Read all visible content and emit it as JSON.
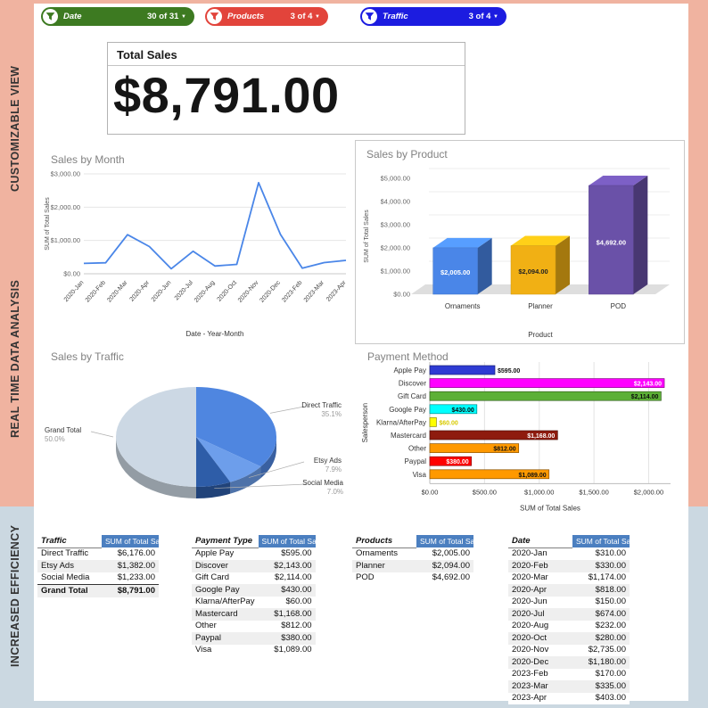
{
  "sidebar": {
    "labels": [
      "CUSTOMIZABLE VIEW",
      "REAL TIME DATA ANALYSIS",
      "INCREASED EFFICIENCY"
    ]
  },
  "filters": [
    {
      "label": "Date",
      "count": "30 of 31",
      "color": "#3d7a21"
    },
    {
      "label": "Products",
      "count": "3 of 4",
      "color": "#e2443b"
    },
    {
      "label": "Traffic",
      "count": "3 of 4",
      "color": "#1c1ce0"
    }
  ],
  "total_sales": {
    "title": "Total Sales",
    "value": "$8,791.00"
  },
  "chart_data": [
    {
      "type": "line",
      "title": "Sales by Month",
      "x": [
        "2020-Jan",
        "2020-Feb",
        "2020-Mar",
        "2020-Apr",
        "2020-Jun",
        "2020-Jul",
        "2020-Aug",
        "2020-Oct",
        "2020-Nov",
        "2020-Dec",
        "2023-Feb",
        "2023-Mar",
        "2023-Apr"
      ],
      "values": [
        310,
        330,
        1174,
        818,
        150,
        674,
        232,
        280,
        2735,
        1180,
        170,
        335,
        403
      ],
      "xlabel": "Date - Year-Month",
      "ylabel": "SUM of Total Sales",
      "ylim": [
        0,
        3000
      ],
      "yticks": [
        "$0.00",
        "$1,000.00",
        "$2,000.00",
        "$3,000.00"
      ],
      "line_color": "#4a86e8",
      "grid": true
    },
    {
      "type": "bar",
      "title": "Sales by Product",
      "categories": [
        "Ornaments",
        "Planner",
        "POD"
      ],
      "values": [
        2005,
        2094,
        4692
      ],
      "bar_labels": [
        "$2,005.00",
        "$2,094.00",
        "$4,692.00"
      ],
      "label_colors": [
        "#ffffff",
        "#222222",
        "#ffffff"
      ],
      "colors": [
        "#4a86e8",
        "#f1b014",
        "#6a51a8"
      ],
      "xlabel": "Product",
      "ylabel": "SUM of Total Sales",
      "ylim": [
        0,
        5000
      ],
      "yticks": [
        "$0.00",
        "$1,000.00",
        "$2,000.00",
        "$3,000.00",
        "$4,000.00",
        "$5,000.00"
      ],
      "style": "3d"
    },
    {
      "type": "pie",
      "title": "Sales by Traffic",
      "slices": [
        {
          "label": "Direct Traffic",
          "pct": 35.1,
          "pct_label": "35.1%",
          "color": "#4f86e0"
        },
        {
          "label": "Etsy Ads",
          "pct": 7.9,
          "pct_label": "7.9%",
          "color": "#6d9eeb"
        },
        {
          "label": "Social Media",
          "pct": 7.0,
          "pct_label": "7.0%",
          "color": "#2e5da8"
        },
        {
          "label": "Grand Total",
          "pct": 50.0,
          "pct_label": "50.0%",
          "color": "#ccd8e4"
        }
      ],
      "style": "3d"
    },
    {
      "type": "bar-horizontal",
      "title": "Payment Method",
      "categories": [
        "Apple Pay",
        "Discover",
        "Gift Card",
        "Google Pay",
        "Klarna/AfterPay",
        "Mastercard",
        "Other",
        "Paypal",
        "Visa"
      ],
      "values": [
        595,
        2143,
        2114,
        430,
        60,
        1168,
        812,
        380,
        1089
      ],
      "bar_labels": [
        "$595.00",
        "$2,143.00",
        "$2,114.00",
        "$430.00",
        "$60.00",
        "$1,168.00",
        "$812.00",
        "$380.00",
        "$1,089.00"
      ],
      "colors": [
        "#2e3bd3",
        "#ff00ff",
        "#5cb036",
        "#00ffff",
        "#ffff00",
        "#8e1b0e",
        "#ff9900",
        "#ff0000",
        "#ff9900"
      ],
      "label_colors": [
        "#111111",
        "#ffffff",
        "#0a0a0a",
        "#0a0a0a",
        "#d8ca00",
        "#ffffff",
        "#111111",
        "#ffffff",
        "#111111"
      ],
      "label_inside": [
        false,
        true,
        true,
        true,
        false,
        true,
        true,
        true,
        true
      ],
      "xlabel": "SUM of Total Sales",
      "ylabel": "Salesperson",
      "xlim": [
        0,
        2200
      ],
      "xtick_values": [
        0,
        500,
        1000,
        1500,
        2000
      ],
      "xticks": [
        "$0.00",
        "$500.00",
        "$1,000.00",
        "$1,500.00",
        "$2,000.00"
      ],
      "grid": true
    }
  ],
  "tables": [
    {
      "header": [
        "Traffic",
        "SUM of Total Sal"
      ],
      "rows": [
        [
          "Direct Traffic",
          "$6,176.00"
        ],
        [
          "Etsy Ads",
          "$1,382.00"
        ],
        [
          "Social Media",
          "$1,233.00"
        ]
      ],
      "total_row": [
        "Grand Total",
        "$8,791.00"
      ]
    },
    {
      "header": [
        "Payment Type",
        "SUM of Total Sa"
      ],
      "rows": [
        [
          "Apple Pay",
          "$595.00"
        ],
        [
          "Discover",
          "$2,143.00"
        ],
        [
          "Gift Card",
          "$2,114.00"
        ],
        [
          "Google Pay",
          "$430.00"
        ],
        [
          "Klarna/AfterPay",
          "$60.00"
        ],
        [
          "Mastercard",
          "$1,168.00"
        ],
        [
          "Other",
          "$812.00"
        ],
        [
          "Paypal",
          "$380.00"
        ],
        [
          "Visa",
          "$1,089.00"
        ]
      ]
    },
    {
      "header": [
        "Products",
        "SUM of Total Sa"
      ],
      "rows": [
        [
          "Ornaments",
          "$2,005.00"
        ],
        [
          "Planner",
          "$2,094.00"
        ],
        [
          "POD",
          "$4,692.00"
        ]
      ]
    },
    {
      "header": [
        "Date",
        "SUM of Total Sa"
      ],
      "rows": [
        [
          "2020-Jan",
          "$310.00"
        ],
        [
          "2020-Feb",
          "$330.00"
        ],
        [
          "2020-Mar",
          "$1,174.00"
        ],
        [
          "2020-Apr",
          "$818.00"
        ],
        [
          "2020-Jun",
          "$150.00"
        ],
        [
          "2020-Jul",
          "$674.00"
        ],
        [
          "2020-Aug",
          "$232.00"
        ],
        [
          "2020-Oct",
          "$280.00"
        ],
        [
          "2020-Nov",
          "$2,735.00"
        ],
        [
          "2020-Dec",
          "$1,180.00"
        ],
        [
          "2023-Feb",
          "$170.00"
        ],
        [
          "2023-Mar",
          "$335.00"
        ],
        [
          "2023-Apr",
          "$403.00"
        ]
      ]
    }
  ]
}
